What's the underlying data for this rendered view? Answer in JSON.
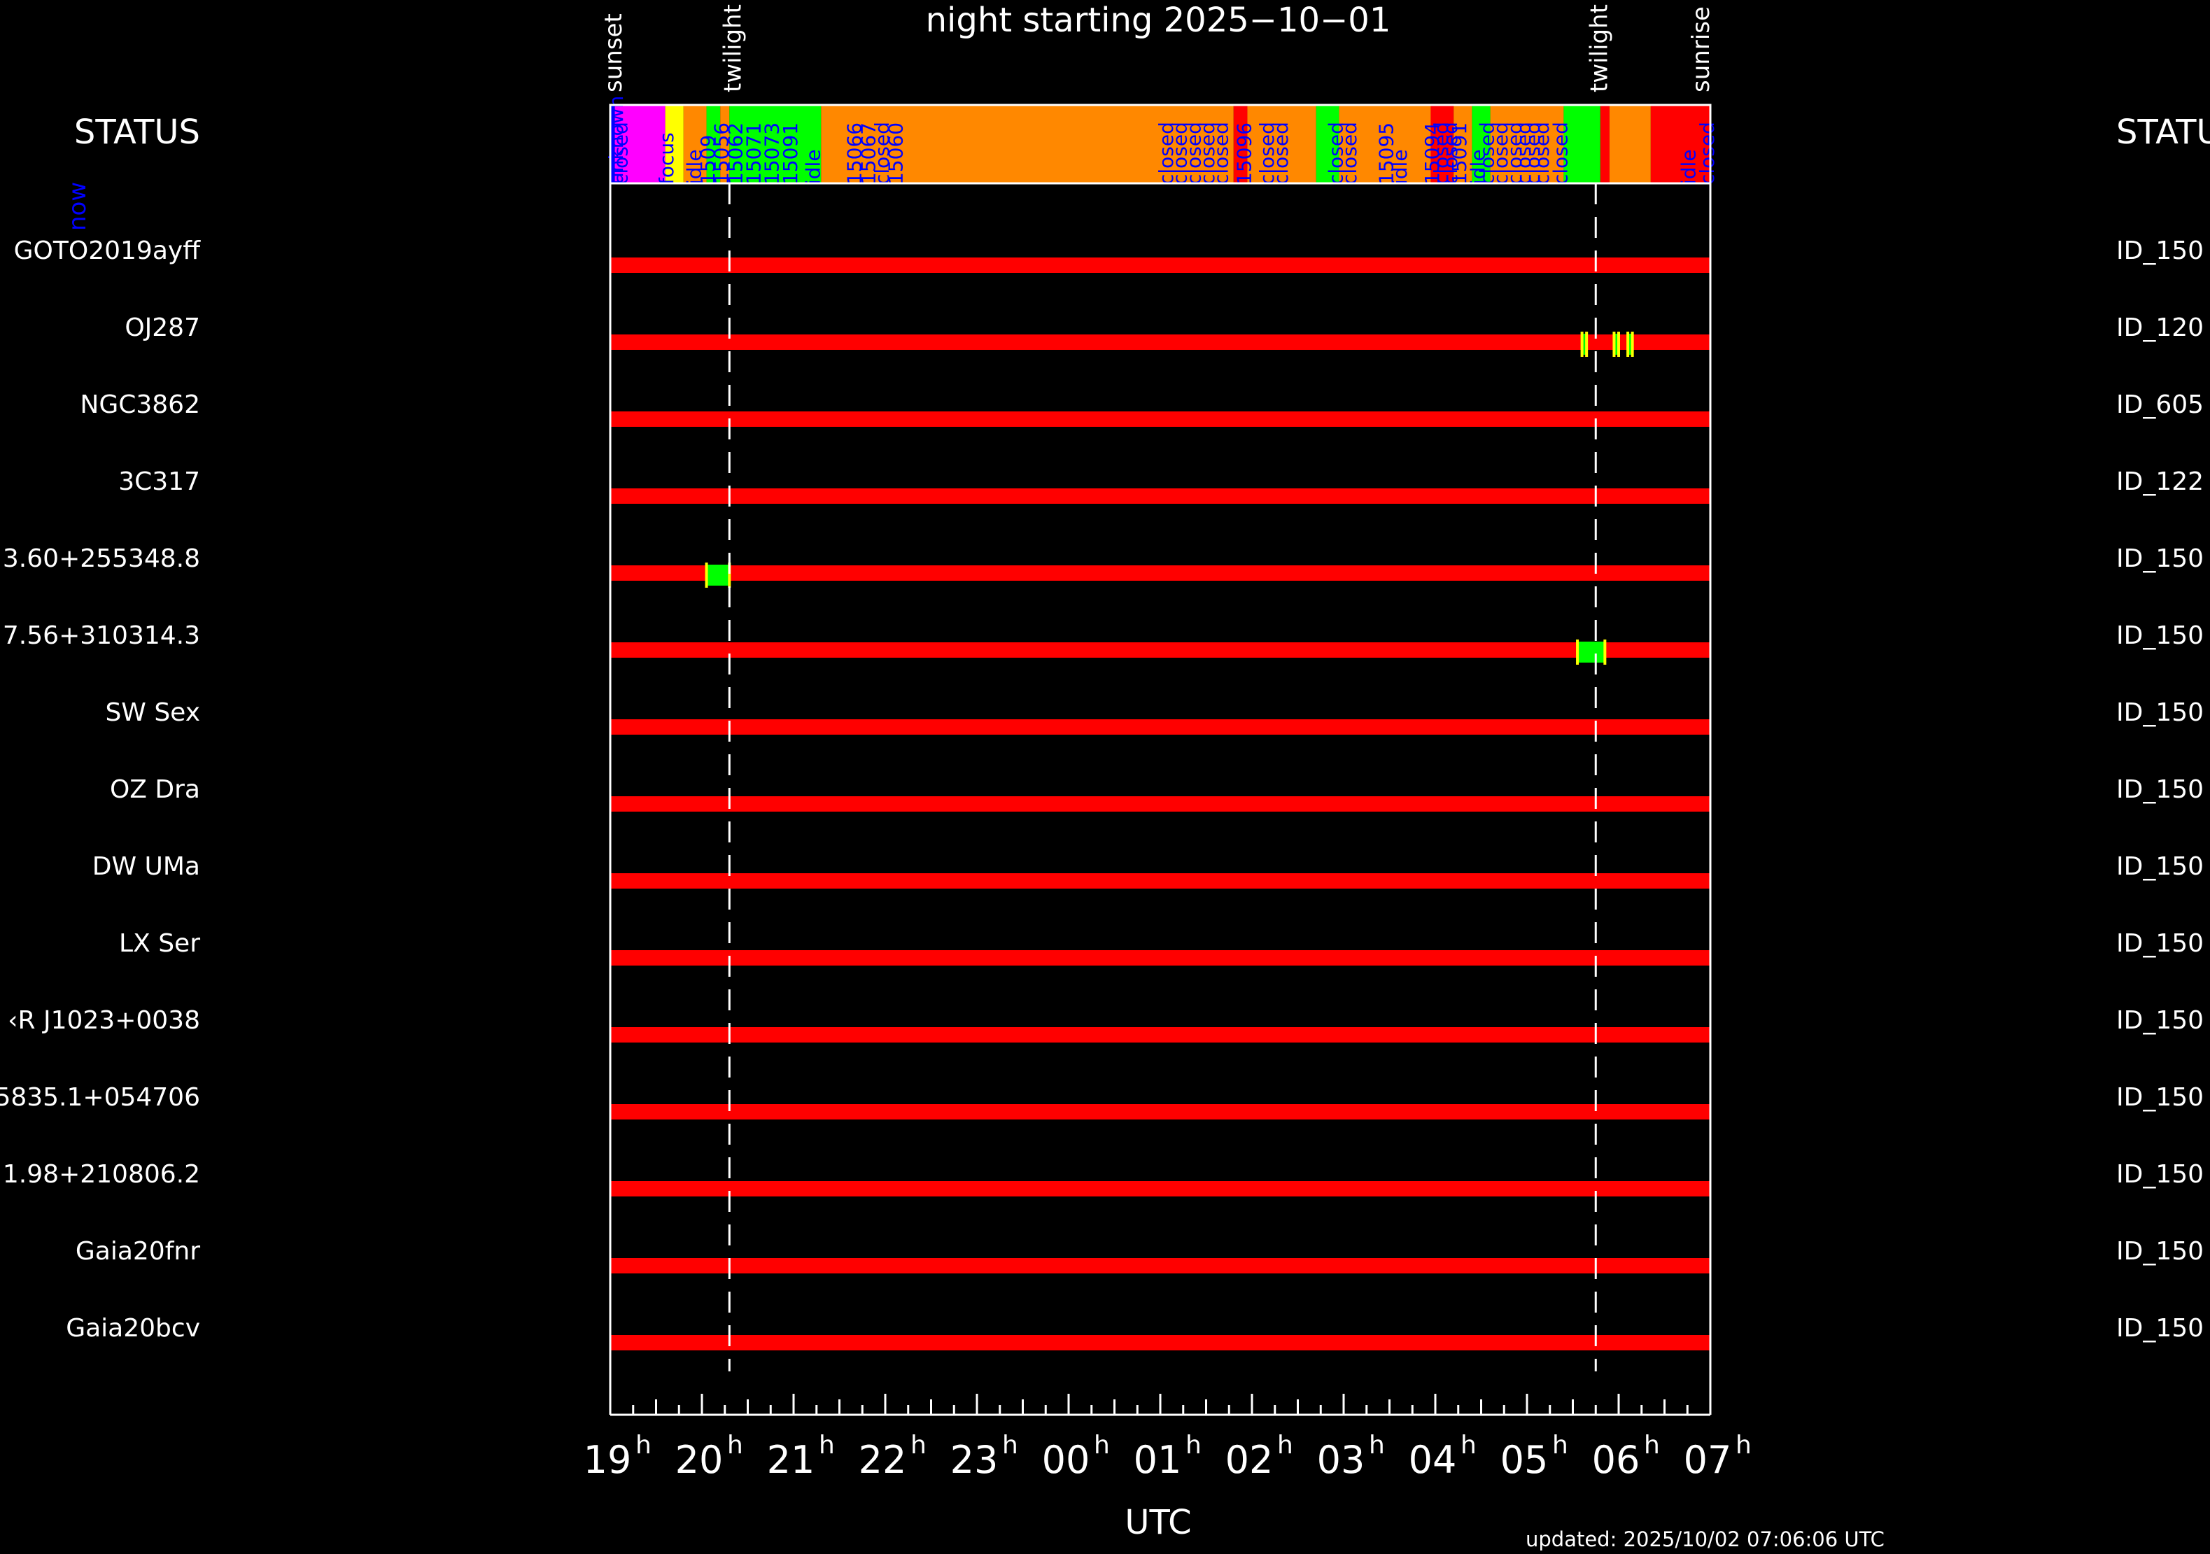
{
  "chart_data": {
    "type": "timeline",
    "title": "night starting 2025−10−01",
    "xlabel": "UTC",
    "updated": "updated: 2025/10/02 07:06:06 UTC",
    "x_range": [
      19.0,
      31.0
    ],
    "x_ticks": [
      {
        "value": 19,
        "label": "19",
        "sup": "h"
      },
      {
        "value": 20,
        "label": "20",
        "sup": "h"
      },
      {
        "value": 21,
        "label": "21",
        "sup": "h"
      },
      {
        "value": 22,
        "label": "22",
        "sup": "h"
      },
      {
        "value": 23,
        "label": "23",
        "sup": "h"
      },
      {
        "value": 24,
        "label": "00",
        "sup": "h"
      },
      {
        "value": 25,
        "label": "01",
        "sup": "h"
      },
      {
        "value": 26,
        "label": "02",
        "sup": "h"
      },
      {
        "value": 27,
        "label": "03",
        "sup": "h"
      },
      {
        "value": 28,
        "label": "04",
        "sup": "h"
      },
      {
        "value": 29,
        "label": "05",
        "sup": "h"
      },
      {
        "value": 30,
        "label": "06",
        "sup": "h"
      },
      {
        "value": 31,
        "label": "07",
        "sup": "h"
      }
    ],
    "events": [
      {
        "label": "sunset",
        "time": 19.0
      },
      {
        "label": "twilight",
        "time": 20.3
      },
      {
        "label": "twilight",
        "time": 29.75
      },
      {
        "label": "sunrise",
        "time": 31.0
      }
    ],
    "dashed_lines": [
      20.3,
      29.75
    ],
    "status_label_left": "STATUS",
    "status_label_right": "STATUS",
    "now_label": "now",
    "status_blocks": [
      {
        "start": 19.0,
        "end": 19.05,
        "color": "#0000ff"
      },
      {
        "start": 19.05,
        "end": 19.6,
        "color": "#ff00ff"
      },
      {
        "start": 19.6,
        "end": 19.8,
        "color": "#ffff00"
      },
      {
        "start": 19.8,
        "end": 20.05,
        "color": "#ff8800"
      },
      {
        "start": 20.05,
        "end": 20.2,
        "color": "#00ff00"
      },
      {
        "start": 20.2,
        "end": 20.3,
        "color": "#ff8800"
      },
      {
        "start": 20.3,
        "end": 21.3,
        "color": "#00ff00"
      },
      {
        "start": 21.3,
        "end": 25.8,
        "color": "#ff8800"
      },
      {
        "start": 25.8,
        "end": 25.95,
        "color": "#ff0000"
      },
      {
        "start": 25.95,
        "end": 26.7,
        "color": "#ff8800"
      },
      {
        "start": 26.7,
        "end": 26.95,
        "color": "#00ff00"
      },
      {
        "start": 26.95,
        "end": 27.95,
        "color": "#ff8800"
      },
      {
        "start": 27.95,
        "end": 28.2,
        "color": "#ff0000"
      },
      {
        "start": 28.2,
        "end": 28.4,
        "color": "#ff8800"
      },
      {
        "start": 28.4,
        "end": 28.6,
        "color": "#00ff00"
      },
      {
        "start": 28.6,
        "end": 29.4,
        "color": "#ff8800"
      },
      {
        "start": 29.4,
        "end": 29.8,
        "color": "#00ff00"
      },
      {
        "start": 29.8,
        "end": 29.9,
        "color": "#ff0000"
      },
      {
        "start": 29.9,
        "end": 30.35,
        "color": "#ff8800"
      },
      {
        "start": 30.35,
        "end": 31.0,
        "color": "#ff0000"
      }
    ],
    "status_texts": [
      {
        "time": 19.0,
        "text": "unknown"
      },
      {
        "time": 19.05,
        "text": "closed"
      },
      {
        "time": 19.55,
        "text": "focus"
      },
      {
        "time": 19.85,
        "text": "idle"
      },
      {
        "time": 20.0,
        "text": "1509"
      },
      {
        "time": 20.15,
        "text": "15056"
      },
      {
        "time": 20.3,
        "text": "15062"
      },
      {
        "time": 20.5,
        "text": "15071"
      },
      {
        "time": 20.7,
        "text": "15073"
      },
      {
        "time": 20.9,
        "text": "15091"
      },
      {
        "time": 21.15,
        "text": "idle"
      },
      {
        "time": 21.6,
        "text": "15066"
      },
      {
        "time": 21.75,
        "text": "15067"
      },
      {
        "time": 21.9,
        "text": "closed"
      },
      {
        "time": 22.05,
        "text": "15060"
      },
      {
        "time": 25.0,
        "text": "closed"
      },
      {
        "time": 25.15,
        "text": "closed"
      },
      {
        "time": 25.3,
        "text": "closed"
      },
      {
        "time": 25.45,
        "text": "closed"
      },
      {
        "time": 25.6,
        "text": "closed"
      },
      {
        "time": 25.85,
        "text": "15096"
      },
      {
        "time": 26.1,
        "text": "closed"
      },
      {
        "time": 26.25,
        "text": "closed"
      },
      {
        "time": 26.85,
        "text": "closed"
      },
      {
        "time": 27.0,
        "text": "closed"
      },
      {
        "time": 27.4,
        "text": "15095"
      },
      {
        "time": 27.55,
        "text": "idle"
      },
      {
        "time": 27.9,
        "text": "15094"
      },
      {
        "time": 28.0,
        "text": "closed"
      },
      {
        "time": 28.1,
        "text": "closed"
      },
      {
        "time": 28.2,
        "text": "15091"
      },
      {
        "time": 28.4,
        "text": "idle"
      },
      {
        "time": 28.5,
        "text": "closed"
      },
      {
        "time": 28.65,
        "text": "closed"
      },
      {
        "time": 28.8,
        "text": "closed"
      },
      {
        "time": 28.9,
        "text": "closed"
      },
      {
        "time": 29.0,
        "text": "closed"
      },
      {
        "time": 29.1,
        "text": "closed"
      },
      {
        "time": 29.3,
        "text": "closed"
      },
      {
        "time": 30.7,
        "text": "idle"
      },
      {
        "time": 30.9,
        "text": "closed"
      }
    ],
    "targets": [
      {
        "name": "GOTO2019ayff",
        "id": "ID_150",
        "obs": []
      },
      {
        "name": "OJ287",
        "id": "ID_120",
        "obs": [
          [
            29.6,
            29.65
          ],
          [
            29.95,
            30.0
          ],
          [
            30.1,
            30.15
          ]
        ]
      },
      {
        "name": "NGC3862",
        "id": "ID_605",
        "obs": []
      },
      {
        "name": "3C317",
        "id": "ID_122",
        "obs": []
      },
      {
        "name": "3.60+255348.8",
        "id": "ID_150",
        "obs": [
          [
            20.05,
            20.3
          ]
        ]
      },
      {
        "name": "7.56+310314.3",
        "id": "ID_150",
        "obs": [
          [
            29.55,
            29.85
          ]
        ]
      },
      {
        "name": "SW Sex",
        "id": "ID_150",
        "obs": []
      },
      {
        "name": "OZ Dra",
        "id": "ID_150",
        "obs": []
      },
      {
        "name": "DW UMa",
        "id": "ID_150",
        "obs": []
      },
      {
        "name": "LX Ser",
        "id": "ID_150",
        "obs": []
      },
      {
        "name": "‹R J1023+0038",
        "id": "ID_150",
        "obs": []
      },
      {
        "name": "5835.1+054706",
        "id": "ID_150",
        "obs": []
      },
      {
        "name": "1.98+210806.2",
        "id": "ID_150",
        "obs": []
      },
      {
        "name": "Gaia20fnr",
        "id": "ID_150",
        "obs": []
      },
      {
        "name": "Gaia20bcv",
        "id": "ID_150",
        "obs": []
      }
    ],
    "colors": {
      "background": "#000000",
      "axis": "#ffffff",
      "bar": "#ff0000",
      "obs_fill": "#00ff00",
      "obs_edge": "#ffff00",
      "status_text": "#0000ff"
    }
  }
}
